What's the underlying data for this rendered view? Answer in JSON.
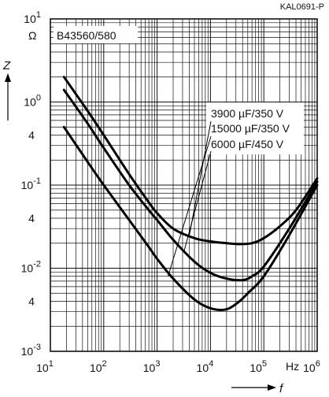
{
  "chart_data": {
    "type": "line",
    "figure_code": "KAL0691-P",
    "product_label": "B43560/580",
    "x_scale": "log",
    "y_scale": "log",
    "xlim": [
      10,
      1000000
    ],
    "ylim": [
      0.001,
      10
    ],
    "x_ticks": [
      {
        "base": "10",
        "exp": "1"
      },
      {
        "base": "10",
        "exp": "2"
      },
      {
        "base": "10",
        "exp": "3"
      },
      {
        "base": "10",
        "exp": "4"
      },
      {
        "base": "10",
        "exp": "5"
      },
      {
        "base": "10",
        "exp": "6"
      }
    ],
    "y_ticks": [
      {
        "base": "10",
        "exp": "1"
      },
      {
        "base": "10",
        "exp": "0"
      },
      {
        "base": "10",
        "exp": "-1"
      },
      {
        "base": "10",
        "exp": "-2"
      },
      {
        "base": "10",
        "exp": "-3"
      }
    ],
    "y_minor_labels": [
      "4",
      "4",
      "4"
    ],
    "x_unit": "Hz",
    "y_unit": "Ω",
    "xlabel": "f",
    "ylabel": "Z",
    "grid": true,
    "legend_position": "top-right",
    "series": [
      {
        "name": "3900 µF/350 V",
        "x": [
          18,
          50,
          100,
          300,
          700,
          1000,
          2000,
          5000,
          10000,
          20000,
          35000,
          60000,
          100000,
          200000,
          400000,
          1000000
        ],
        "y": [
          2.0,
          0.78,
          0.4,
          0.135,
          0.062,
          0.046,
          0.03,
          0.023,
          0.021,
          0.02,
          0.0195,
          0.02,
          0.023,
          0.032,
          0.05,
          0.12
        ]
      },
      {
        "name": "15000 µF/350 V",
        "x": [
          18,
          50,
          100,
          300,
          700,
          1000,
          2000,
          5000,
          10000,
          20000,
          35000,
          50000,
          100000,
          300000,
          1000000
        ],
        "y": [
          0.5,
          0.19,
          0.1,
          0.038,
          0.018,
          0.013,
          0.0075,
          0.0042,
          0.0033,
          0.0032,
          0.004,
          0.005,
          0.008,
          0.025,
          0.1
        ]
      },
      {
        "name": "6000 µF/450 V",
        "x": [
          18,
          50,
          100,
          300,
          700,
          1000,
          2000,
          5000,
          10000,
          20000,
          40000,
          60000,
          100000,
          300000,
          1000000
        ],
        "y": [
          1.4,
          0.55,
          0.28,
          0.1,
          0.05,
          0.038,
          0.022,
          0.012,
          0.0088,
          0.0075,
          0.0072,
          0.008,
          0.0105,
          0.03,
          0.11
        ]
      }
    ]
  }
}
